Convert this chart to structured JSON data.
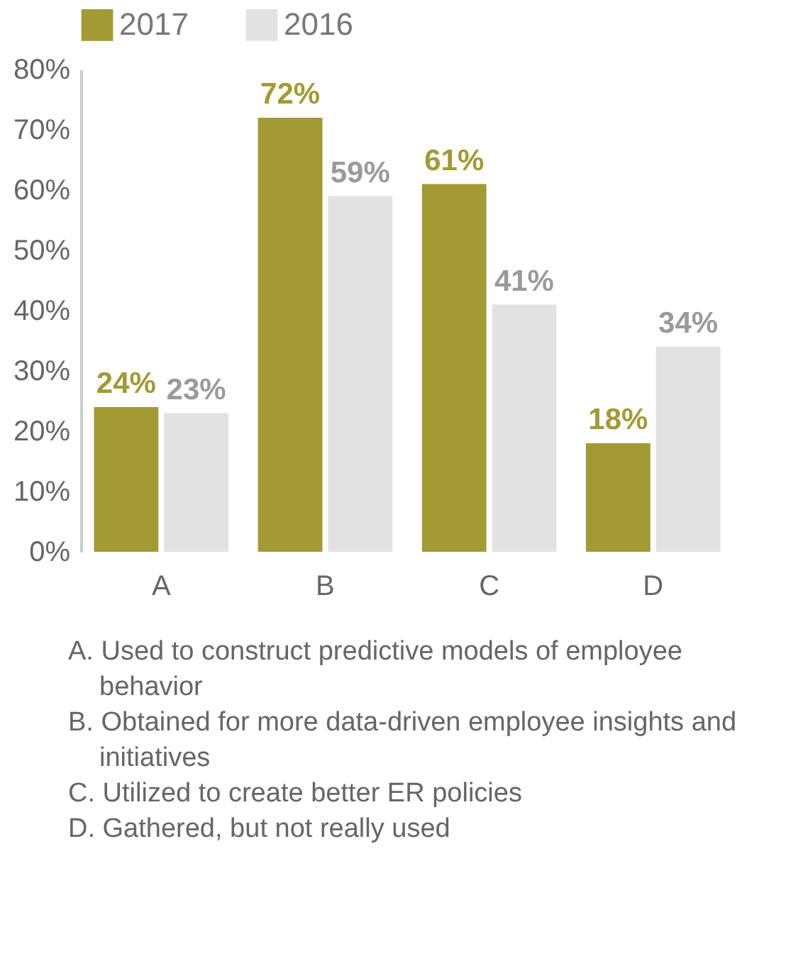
{
  "chart_data": {
    "type": "bar",
    "categories": [
      "A",
      "B",
      "C",
      "D"
    ],
    "series": [
      {
        "name": "2017",
        "color": "#a39a33",
        "values": [
          24,
          72,
          61,
          18
        ],
        "value_labels": [
          "24%",
          "72%",
          "61%",
          "18%"
        ]
      },
      {
        "name": "2016",
        "color": "#e2e2e2",
        "values": [
          23,
          59,
          41,
          34
        ],
        "value_labels": [
          "23%",
          "59%",
          "41%",
          "34%"
        ]
      }
    ],
    "ylim": [
      0,
      80
    ],
    "yticks": [
      {
        "value": 0,
        "label": "0%"
      },
      {
        "value": 10,
        "label": "10%"
      },
      {
        "value": 20,
        "label": "20%"
      },
      {
        "value": 30,
        "label": "30%"
      },
      {
        "value": 40,
        "label": "40%"
      },
      {
        "value": 50,
        "label": "50%"
      },
      {
        "value": 60,
        "label": "60%"
      },
      {
        "value": 70,
        "label": "70%"
      },
      {
        "value": 80,
        "label": "80%"
      }
    ],
    "grid": false,
    "legend": "top left",
    "annotations": [
      "A. Used to construct predictive models of employee behavior",
      "B. Obtained for more data-driven employee insights and initiatives",
      "C. Utilized to create better ER policies",
      "D. Gathered, but not really used"
    ]
  }
}
